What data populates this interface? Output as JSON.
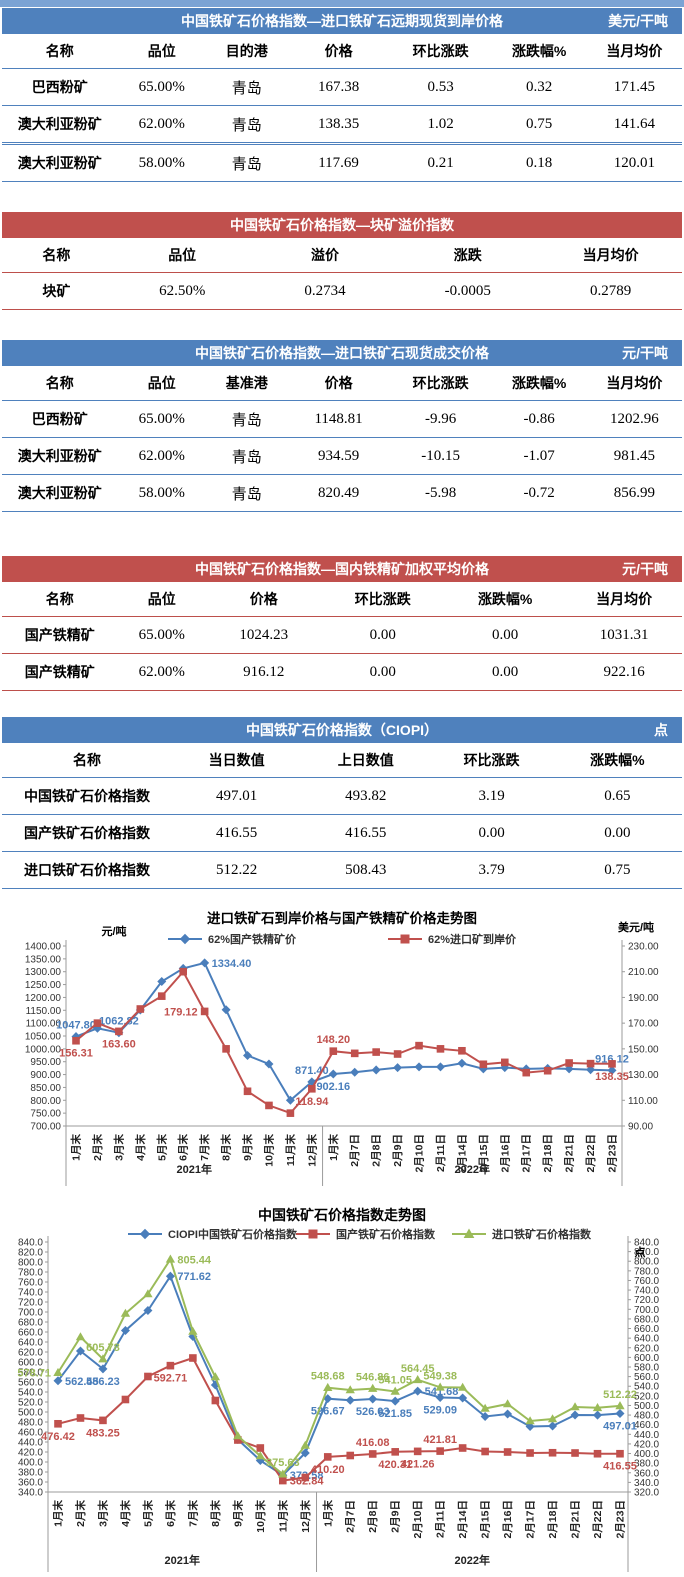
{
  "page": {
    "top_strip_color": "#7ba3d4"
  },
  "tables": [
    {
      "theme": "blue",
      "title": "中国铁矿石价格指数—进口铁矿石远期现货到岸价格",
      "unit": "美元/干吨",
      "headers": [
        "名称",
        "品位",
        "目的港",
        "价格",
        "环比涨跌",
        "涨跌幅%",
        "当月均价"
      ],
      "rows": [
        [
          "巴西粉矿",
          "65.00%",
          "青岛",
          "167.38",
          "0.53",
          "0.32",
          "171.45"
        ],
        [
          "澳大利亚粉矿",
          "62.00%",
          "青岛",
          "138.35",
          "1.02",
          "0.75",
          "141.64"
        ],
        [
          "澳大利亚粉矿",
          "58.00%",
          "青岛",
          "117.69",
          "0.21",
          "0.18",
          "120.01"
        ]
      ]
    },
    {
      "theme": "red",
      "title": "中国铁矿石价格指数—块矿溢价指数",
      "unit": "",
      "headers": [
        "名称",
        "品位",
        "溢价",
        "涨跌",
        "当月均价"
      ],
      "rows": [
        [
          "块矿",
          "62.50%",
          "0.2734",
          "-0.0005",
          "0.2789"
        ]
      ]
    },
    {
      "theme": "blue",
      "title": "中国铁矿石价格指数—进口铁矿石现货成交价格",
      "unit": "元/干吨",
      "headers": [
        "名称",
        "品位",
        "基准港",
        "价格",
        "环比涨跌",
        "涨跌幅%",
        "当月均价"
      ],
      "rows": [
        [
          "巴西粉矿",
          "65.00%",
          "青岛",
          "1148.81",
          "-9.96",
          "-0.86",
          "1202.96"
        ],
        [
          "澳大利亚粉矿",
          "62.00%",
          "青岛",
          "934.59",
          "-10.15",
          "-1.07",
          "981.45"
        ],
        [
          "澳大利亚粉矿",
          "58.00%",
          "青岛",
          "820.49",
          "-5.98",
          "-0.72",
          "856.99"
        ]
      ]
    },
    {
      "theme": "red",
      "title": "中国铁矿石价格指数—国内铁精矿加权平均价格",
      "unit": "元/干吨",
      "headers": [
        "名称",
        "品位",
        "价格",
        "环比涨跌",
        "涨跌幅%",
        "当月均价"
      ],
      "rows": [
        [
          "国产铁精矿",
          "65.00%",
          "1024.23",
          "0.00",
          "0.00",
          "1031.31"
        ],
        [
          "国产铁精矿",
          "62.00%",
          "916.12",
          "0.00",
          "0.00",
          "922.16"
        ]
      ]
    },
    {
      "theme": "blue",
      "title": "中国铁矿石价格指数（CIOPI）",
      "unit": "点",
      "headers": [
        "名称",
        "当日数值",
        "上日数值",
        "环比涨跌",
        "涨跌幅%"
      ],
      "rows": [
        [
          "中国铁矿石价格指数",
          "497.01",
          "493.82",
          "3.19",
          "0.65"
        ],
        [
          "国产铁矿石价格指数",
          "416.55",
          "416.55",
          "0.00",
          "0.00"
        ],
        [
          "进口铁矿石价格指数",
          "512.22",
          "508.43",
          "3.79",
          "0.75"
        ]
      ]
    }
  ],
  "chart_data": [
    {
      "type": "line",
      "title": "进口铁矿石到岸价格与国产铁精矿价格走势图",
      "left_axis": {
        "label": "元/吨",
        "min": 700,
        "max": 1400,
        "step": 50,
        "decimals": 2
      },
      "right_axis": {
        "label": "美元/吨",
        "min": 90,
        "max": 230,
        "step": 20,
        "decimals": 2
      },
      "categories": [
        "1月末",
        "2月末",
        "3月末",
        "4月末",
        "5月末",
        "6月末",
        "7月末",
        "8月末",
        "9月末",
        "10月末",
        "11月末",
        "12月末",
        "1月末",
        "2月7日",
        "2月8日",
        "2月9日",
        "2月10日",
        "2月11日",
        "2月14日",
        "2月15日",
        "2月16日",
        "2月17日",
        "2月18日",
        "2月21日",
        "2月22日",
        "2月23日"
      ],
      "year_groups": [
        {
          "label": "2021年",
          "span": 12
        },
        {
          "label": "2022年",
          "span": 14
        }
      ],
      "legend_position": "top",
      "grid": false,
      "series": [
        {
          "name": "62%国产铁精矿价",
          "color": "#4a7ebb",
          "marker": "diamond",
          "axis": "left",
          "values": [
            1047.8,
            1080,
            1062.82,
            1151,
            1262,
            1313,
            1334.4,
            1152,
            974,
            941,
            800,
            871.4,
            902.16,
            909,
            918,
            927,
            930,
            930,
            944,
            922,
            927,
            922,
            924,
            922,
            919,
            916.12
          ],
          "labels": {
            "0": "1047.80",
            "2": "1062.82",
            "6": "1334.40",
            "11": "871.40",
            "12": "902.16",
            "25": "916.12"
          },
          "label_pos": {
            "0": "above",
            "2": "above",
            "6": "right",
            "11": "above",
            "12": "below",
            "25": "above"
          }
        },
        {
          "name": "62%进口矿到岸价",
          "color": "#c0504d",
          "marker": "square",
          "axis": "right",
          "values": [
            156.31,
            170,
            163.6,
            181,
            191,
            210,
            179.12,
            150,
            117,
            106,
            100,
            118.94,
            148.2,
            146.5,
            147.5,
            146,
            152.5,
            150,
            148.5,
            138,
            139.5,
            131.5,
            133,
            139,
            138.5,
            138.35
          ],
          "labels": {
            "0": "156.31",
            "2": "163.60",
            "6": "179.12",
            "11": "118.94",
            "12": "148.20",
            "25": "138.35"
          },
          "label_pos": {
            "0": "below",
            "2": "below",
            "6": "left",
            "11": "below",
            "12": "above",
            "25": "below"
          }
        }
      ]
    },
    {
      "type": "line",
      "title": "中国铁矿石价格指数走势图",
      "left_axis": {
        "label": "",
        "min": 340,
        "max": 840,
        "step": 20,
        "decimals": 1
      },
      "right_axis": {
        "label": "点",
        "min": 320,
        "max": 840,
        "step": 20,
        "decimals": 1
      },
      "categories": [
        "1月末",
        "2月末",
        "3月末",
        "4月末",
        "5月末",
        "6月末",
        "7月末",
        "8月末",
        "9月末",
        "10月末",
        "11月末",
        "12月末",
        "1月末",
        "2月7日",
        "2月8日",
        "2月9日",
        "2月10日",
        "2月11日",
        "2月14日",
        "2月15日",
        "2月16日",
        "2月17日",
        "2月18日",
        "2月21日",
        "2月22日",
        "2月23日"
      ],
      "year_groups": [
        {
          "label": "2021年",
          "span": 12
        },
        {
          "label": "2022年",
          "span": 14
        }
      ],
      "legend_position": "top",
      "grid": false,
      "series": [
        {
          "name": "CIOPI中国铁矿石价格指数",
          "color": "#4a7ebb",
          "marker": "diamond",
          "axis": "left",
          "values": [
            562.45,
            622,
            586.23,
            663,
            703,
            771.62,
            651,
            554,
            445,
            403,
            373.58,
            418,
            526.67,
            523.5,
            526.03,
            521.85,
            541.68,
            529.09,
            528,
            491,
            496,
            471,
            472,
            494,
            493.82,
            497.01
          ],
          "labels": {
            "0": "562.45",
            "2": "586.23",
            "5": "771.62",
            "10": "373.58",
            "12": "526.67",
            "14": "526.03",
            "15": "521.85",
            "16": "541.68",
            "17": "529.09",
            "25": "497.01"
          },
          "label_pos": {
            "0": "right",
            "2": "below",
            "5": "right",
            "10": "right",
            "12": "below",
            "14": "below",
            "15": "below",
            "16": "right",
            "17": "below",
            "25": "below"
          }
        },
        {
          "name": "国产铁矿石价格指数",
          "color": "#c0504d",
          "marker": "square",
          "axis": "left",
          "values": [
            476.42,
            488,
            483.25,
            525,
            571,
            592.71,
            608,
            523,
            444,
            428,
            362.84,
            369,
            410.2,
            413,
            416.08,
            420.31,
            421.26,
            421.81,
            428,
            421,
            420,
            418,
            418.5,
            418,
            416.55,
            416.55
          ],
          "labels": {
            "0": "476.42",
            "2": "483.25",
            "5": "592.71",
            "10": "362.84",
            "12": "410.20",
            "14": "416.08",
            "15": "420.31",
            "16": "421.26",
            "17": "421.81",
            "25": "416.55"
          },
          "label_pos": {
            "0": "below",
            "2": "below",
            "5": "below",
            "10": "right",
            "12": "below",
            "14": "above",
            "15": "below",
            "16": "below",
            "17": "above",
            "25": "below"
          }
        },
        {
          "name": "进口铁矿石价格指数",
          "color": "#9bbb59",
          "marker": "triangle",
          "axis": "left",
          "values": [
            578.71,
            650,
            605.78,
            697,
            736,
            805.44,
            661,
            570,
            452,
            412,
            375.63,
            433,
            548.68,
            544,
            546.86,
            541.05,
            564.45,
            549.38,
            549,
            507,
            516,
            482,
            486,
            510,
            508.43,
            512.22
          ],
          "labels": {
            "0": "578.71",
            "2": "605.78",
            "5": "805.44",
            "10": "375.63",
            "12": "548.68",
            "14": "546.86",
            "15": "541.05",
            "16": "564.45",
            "17": "549.38",
            "25": "512.22"
          },
          "label_pos": {
            "0": "left",
            "2": "above",
            "5": "right",
            "10": "above",
            "12": "above",
            "14": "above",
            "15": "above",
            "16": "above",
            "17": "above",
            "25": "above"
          }
        }
      ]
    }
  ]
}
